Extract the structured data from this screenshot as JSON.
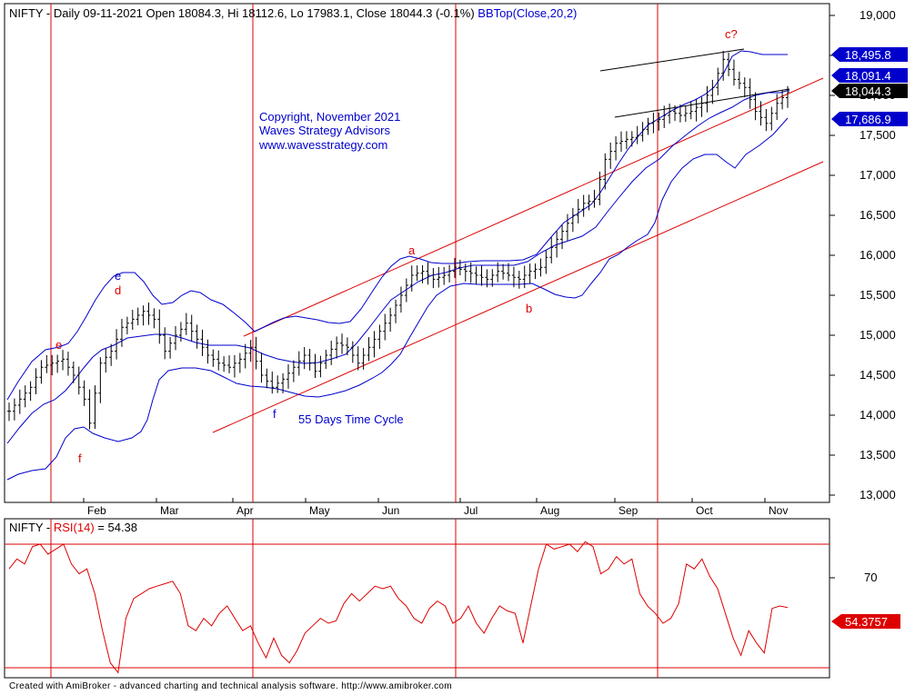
{
  "header": {
    "price_title": "NIFTY - Daily 09-11-2021 Open 18084.3, Hi 18112.6, Lo 17983.1, Close 18044.3 (-0.1%)",
    "bb_label": "BBTop(Close,20,2)",
    "rsi_prefix": "NIFTY - ",
    "rsi_label": "RSI(14)",
    "rsi_value": " = 54.38"
  },
  "copyright": {
    "line1": "Copyright, November 2021",
    "line2": "Waves Strategy Advisors",
    "line3": "www.wavesstrategy.com"
  },
  "footer": "Created with AmiBroker - advanced charting and technical analysis software. http://www.amibroker.com",
  "colors": {
    "price_bars": "#000000",
    "bollinger": "#0000cc",
    "trend_lines": "#dd0000",
    "rsi_line": "#dd0000",
    "annotation_text": "#0000cc",
    "wave_labels": "#dd0000"
  },
  "chart_data": [
    {
      "type": "line",
      "name": "price-panel",
      "y_axis_ticks": [
        "13,000",
        "13,500",
        "14,000",
        "14,500",
        "15,000",
        "15,500",
        "16,000",
        "16,500",
        "17,000",
        "17,500",
        "18,000",
        "18,500",
        "19,000"
      ],
      "x_axis_ticks": [
        "Feb",
        "Mar",
        "Apr",
        "May",
        "Jun",
        "Jul",
        "Aug",
        "Sep",
        "Oct",
        "Nov"
      ],
      "ylim": [
        12950,
        19100
      ],
      "price_tags": [
        {
          "label": "18,495.8",
          "value": 18495.8,
          "style": "blue"
        },
        {
          "label": "18,091.4",
          "value": 18091.4,
          "style": "blue"
        },
        {
          "label": "18,044.3",
          "value": 18044.3,
          "style": "black"
        },
        {
          "label": "17,686.9",
          "value": 17686.9,
          "style": "blue"
        }
      ],
      "ohlc_approx_close": [
        [
          1,
          14050
        ],
        [
          3,
          14200
        ],
        [
          5,
          14350
        ],
        [
          7,
          14600
        ],
        [
          9,
          14650
        ],
        [
          11,
          14700
        ],
        [
          13,
          14500
        ],
        [
          15,
          14200
        ],
        [
          16,
          13900
        ],
        [
          18,
          14650
        ],
        [
          20,
          14800
        ],
        [
          22,
          15100
        ],
        [
          24,
          15200
        ],
        [
          26,
          15300
        ],
        [
          28,
          15200
        ],
        [
          30,
          14800
        ],
        [
          32,
          15000
        ],
        [
          34,
          15150
        ],
        [
          36,
          14950
        ],
        [
          38,
          14750
        ],
        [
          40,
          14650
        ],
        [
          42,
          14600
        ],
        [
          44,
          14700
        ],
        [
          46,
          14850
        ],
        [
          48,
          14500
        ],
        [
          50,
          14350
        ],
        [
          52,
          14450
        ],
        [
          54,
          14600
        ],
        [
          56,
          14750
        ],
        [
          58,
          14550
        ],
        [
          60,
          14750
        ],
        [
          62,
          14900
        ],
        [
          64,
          14850
        ],
        [
          66,
          14650
        ],
        [
          68,
          14850
        ],
        [
          70,
          15050
        ],
        [
          72,
          15250
        ],
        [
          74,
          15500
        ],
        [
          76,
          15750
        ],
        [
          78,
          15800
        ],
        [
          80,
          15700
        ],
        [
          82,
          15750
        ],
        [
          84,
          15850
        ],
        [
          86,
          15800
        ],
        [
          88,
          15750
        ],
        [
          90,
          15700
        ],
        [
          92,
          15800
        ],
        [
          94,
          15750
        ],
        [
          96,
          15700
        ],
        [
          98,
          15800
        ],
        [
          100,
          15850
        ],
        [
          102,
          16100
        ],
        [
          104,
          16300
        ],
        [
          106,
          16500
        ],
        [
          108,
          16650
        ],
        [
          110,
          16700
        ],
        [
          112,
          17200
        ],
        [
          114,
          17400
        ],
        [
          116,
          17450
        ],
        [
          118,
          17500
        ],
        [
          120,
          17650
        ],
        [
          122,
          17700
        ],
        [
          124,
          17800
        ],
        [
          126,
          17750
        ],
        [
          128,
          17800
        ],
        [
          130,
          17900
        ],
        [
          132,
          18100
        ],
        [
          134,
          18450
        ],
        [
          136,
          18200
        ],
        [
          138,
          18100
        ],
        [
          140,
          17800
        ],
        [
          142,
          17650
        ],
        [
          144,
          17900
        ],
        [
          146,
          18044.3
        ]
      ],
      "series": [
        {
          "name": "NIFTY",
          "description": "daily OHLC bars"
        },
        {
          "name": "BBTop(Close,20,2)",
          "description": "Bollinger bands upper/mid/lower"
        }
      ],
      "annotations": [
        {
          "text": "e",
          "color": "blue"
        },
        {
          "text": "d",
          "color": "red"
        },
        {
          "text": "e",
          "color": "red"
        },
        {
          "text": "f",
          "color": "red"
        },
        {
          "text": "f",
          "color": "blue"
        },
        {
          "text": "a",
          "color": "red"
        },
        {
          "text": "b",
          "color": "red"
        },
        {
          "text": "c?",
          "color": "red"
        },
        {
          "text": "55 Days Time Cycle",
          "color": "blue"
        }
      ]
    },
    {
      "type": "line",
      "name": "rsi-panel",
      "series_name": "RSI(14)",
      "value_label": "54.3757",
      "y_axis_ticks": [
        "70"
      ],
      "ylim": [
        25,
        90
      ],
      "upper_band": 80,
      "lower_band": 30,
      "values": [
        70,
        74,
        72,
        79,
        80,
        76,
        78,
        80,
        72,
        68,
        70,
        60,
        45,
        32,
        28,
        50,
        58,
        60,
        62,
        63,
        64,
        65,
        60,
        47,
        45,
        50,
        47,
        52,
        55,
        50,
        45,
        47,
        40,
        34,
        42,
        35,
        32,
        37,
        44,
        47,
        50,
        48,
        49,
        56,
        60,
        57,
        60,
        63,
        62,
        63,
        58,
        55,
        50,
        48,
        54,
        57,
        55,
        48,
        50,
        55,
        48,
        44,
        50,
        55,
        53,
        52,
        40,
        55,
        70,
        80,
        78,
        79,
        80,
        77,
        81,
        79,
        68,
        70,
        75,
        72,
        74,
        60,
        55,
        52,
        48,
        50,
        56,
        72,
        70,
        74,
        67,
        62,
        52,
        42,
        35,
        45,
        40,
        36,
        54,
        55,
        54.38
      ]
    }
  ]
}
